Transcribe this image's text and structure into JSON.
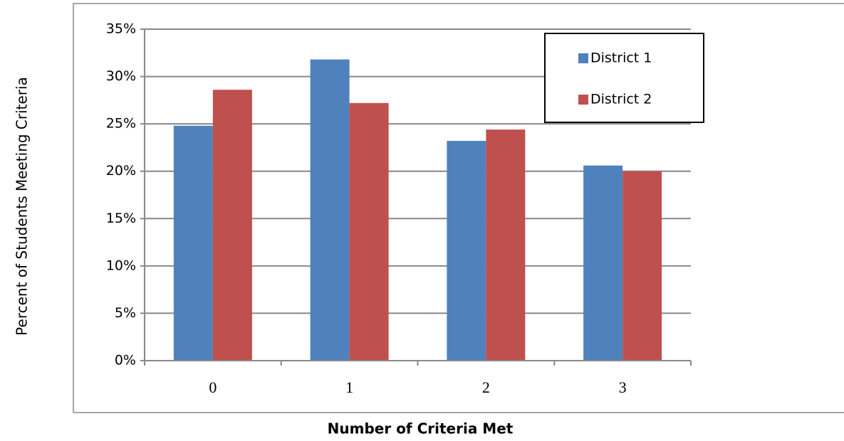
{
  "chart_data": {
    "type": "bar",
    "x_label": "Number of Criteria Met",
    "y_label": "Percent of Students Meeting  Criteria",
    "categories": [
      "0",
      "1",
      "2",
      "3"
    ],
    "series": [
      {
        "name": "District 1",
        "color": "#4f81bd",
        "values": [
          24.8,
          31.8,
          23.2,
          20.6
        ]
      },
      {
        "name": "District 2",
        "color": "#c0504d",
        "values": [
          28.6,
          27.2,
          24.4,
          20.0
        ]
      }
    ],
    "ylim": [
      0,
      35
    ],
    "yticks": [
      {
        "value": 0,
        "label": "0%"
      },
      {
        "value": 5,
        "label": "5%"
      },
      {
        "value": 10,
        "label": "10%"
      },
      {
        "value": 15,
        "label": "15%"
      },
      {
        "value": 20,
        "label": "20%"
      },
      {
        "value": 25,
        "label": "25%"
      },
      {
        "value": 30,
        "label": "30%"
      },
      {
        "value": 35,
        "label": "35%"
      }
    ],
    "grid": true,
    "legend": "upper right"
  }
}
